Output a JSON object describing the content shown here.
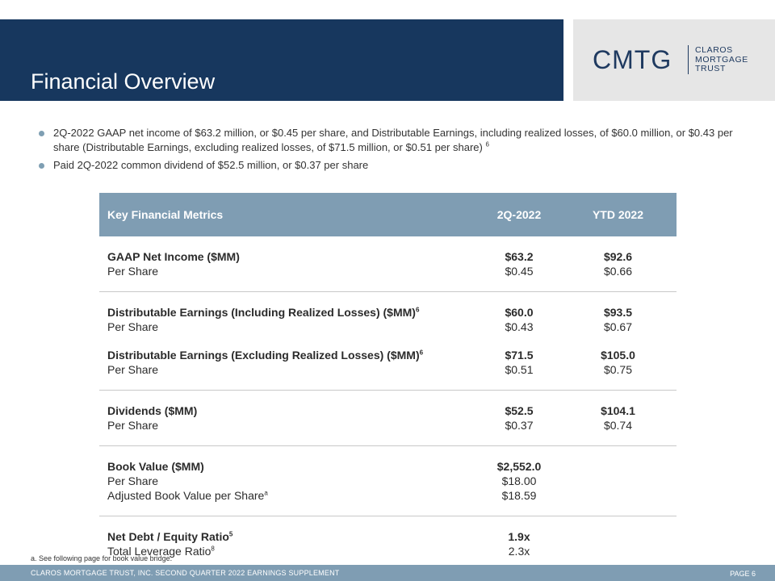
{
  "header": {
    "title": "Financial Overview"
  },
  "logo": {
    "mark": "CMTG",
    "words": [
      "CLAROS",
      "MORTGAGE",
      "TRUST"
    ]
  },
  "bullets": [
    {
      "text": "2Q-2022 GAAP net income of $63.2 million, or $0.45 per share, and Distributable Earnings, including realized losses, of $60.0 million, or $0.43 per share (Distributable Earnings, excluding realized losses, of $71.5 million, or $0.51 per share)",
      "sup": "6"
    },
    {
      "text": "Paid 2Q-2022 common dividend of $52.5 million, or $0.37 per share"
    }
  ],
  "table": {
    "headers": [
      "Key Financial Metrics",
      "2Q-2022",
      "YTD 2022"
    ],
    "groups": [
      {
        "rows": [
          {
            "label": "GAAP Net Income ($MM)",
            "q": "$63.2",
            "ytd": "$92.6",
            "bold": true
          },
          {
            "label": "Per Share",
            "q": "$0.45",
            "ytd": "$0.66"
          }
        ]
      },
      {
        "rows": [
          {
            "label": "Distributable Earnings (Including Realized Losses) ($MM)",
            "sup": "6",
            "q": "$60.0",
            "ytd": "$93.5",
            "bold": true
          },
          {
            "label": "Per Share",
            "q": "$0.43",
            "ytd": "$0.67"
          },
          {
            "gap": true
          },
          {
            "label": "Distributable Earnings (Excluding Realized Losses) ($MM)",
            "sup": "6",
            "q": "$71.5",
            "ytd": "$105.0",
            "bold": true
          },
          {
            "label": "Per Share",
            "q": "$0.51",
            "ytd": "$0.75"
          }
        ]
      },
      {
        "rows": [
          {
            "label": "Dividends ($MM)",
            "q": "$52.5",
            "ytd": "$104.1",
            "bold": true
          },
          {
            "label": "Per Share",
            "q": "$0.37",
            "ytd": "$0.74"
          }
        ]
      },
      {
        "rows": [
          {
            "label": "Book Value ($MM)",
            "q": "$2,552.0",
            "ytd": "",
            "bold": true
          },
          {
            "label": "Per Share",
            "q": "$18.00",
            "ytd": ""
          },
          {
            "label": "Adjusted Book Value per Share",
            "sup": "a",
            "q": "$18.59",
            "ytd": ""
          }
        ]
      },
      {
        "rows": [
          {
            "label": "Net Debt / Equity Ratio",
            "sup": "5",
            "q": "1.9x",
            "ytd": "",
            "bold": true
          },
          {
            "label": "Total Leverage Ratio",
            "sup": "8",
            "q": "2.3x",
            "ytd": ""
          }
        ]
      }
    ]
  },
  "footnote": "a. See following page for book value bridge.",
  "footer": {
    "left": "CLAROS MORTGAGE TRUST, INC. SECOND QUARTER 2022 EARNINGS SUPPLEMENT",
    "right": "PAGE 6"
  },
  "colors": {
    "navy": "#17375e",
    "steel": "#7f9db3",
    "logo_gray": "#e6e6e6"
  }
}
